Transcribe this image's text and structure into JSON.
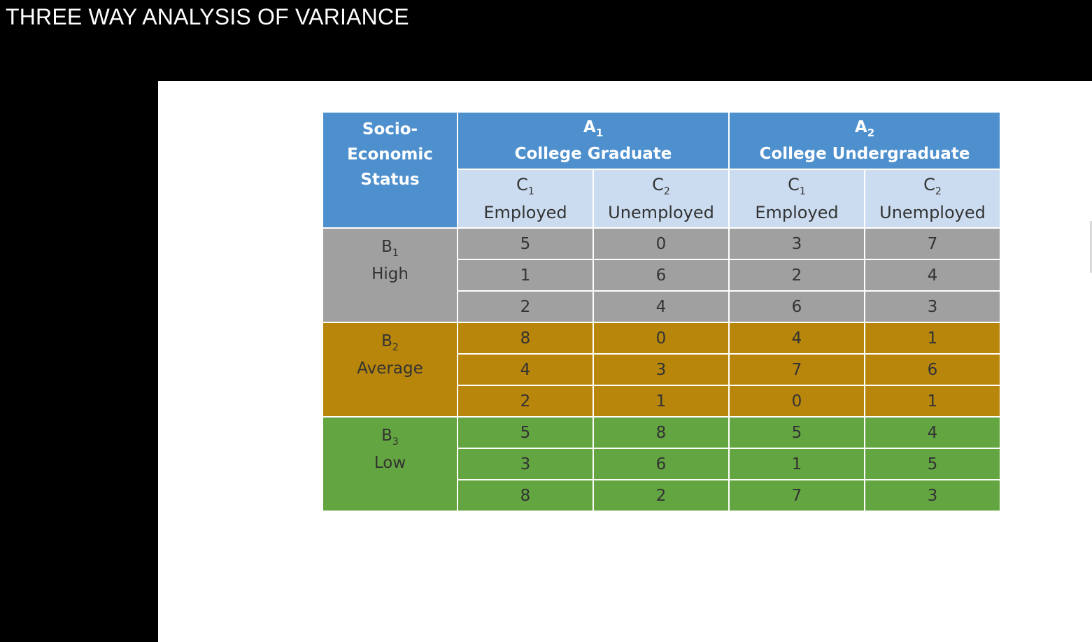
{
  "video_title": "THREE WAY ANALYSIS OF VARIANCE",
  "table": {
    "corner_header": [
      "Socio-",
      "Economic",
      "Status"
    ],
    "factor_a": [
      {
        "code": "A",
        "sub": "1",
        "label": "College Graduate"
      },
      {
        "code": "A",
        "sub": "2",
        "label": "College Undergraduate"
      }
    ],
    "factor_c": [
      {
        "code": "C",
        "sub": "1",
        "label": "Employed"
      },
      {
        "code": "C",
        "sub": "2",
        "label": "Unemployed"
      },
      {
        "code": "C",
        "sub": "1",
        "label": "Employed"
      },
      {
        "code": "C",
        "sub": "2",
        "label": "Unemployed"
      }
    ],
    "groups": [
      {
        "code": "B",
        "sub": "1",
        "label": "High",
        "color": "#a0a0a0",
        "rows": [
          [
            "5",
            "0",
            "3",
            "7"
          ],
          [
            "1",
            "6",
            "2",
            "4"
          ],
          [
            "2",
            "4",
            "6",
            "3"
          ]
        ]
      },
      {
        "code": "B",
        "sub": "2",
        "label": "Average",
        "color": "#b8860b",
        "rows": [
          [
            "8",
            "0",
            "4",
            "1"
          ],
          [
            "4",
            "3",
            "7",
            "6"
          ],
          [
            "2",
            "1",
            "0",
            "1"
          ]
        ]
      },
      {
        "code": "B",
        "sub": "3",
        "label": "Low",
        "color": "#63a540",
        "rows": [
          [
            "5",
            "8",
            "5",
            "4"
          ],
          [
            "3",
            "6",
            "1",
            "5"
          ],
          [
            "8",
            "2",
            "7",
            "3"
          ]
        ]
      }
    ],
    "header_color": "#4e90cd",
    "subheader_color": "#cbdcf0"
  }
}
